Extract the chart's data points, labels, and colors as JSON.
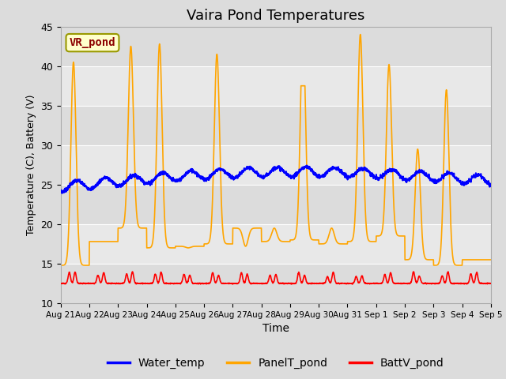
{
  "title": "Vaira Pond Temperatures",
  "xlabel": "Time",
  "ylabel": "Temperature (C), Battery (V)",
  "ylim": [
    10,
    45
  ],
  "yticks": [
    10,
    15,
    20,
    25,
    30,
    35,
    40,
    45
  ],
  "xtick_labels": [
    "Aug 21",
    "Aug 22",
    "Aug 23",
    "Aug 24",
    "Aug 25",
    "Aug 26",
    "Aug 27",
    "Aug 28",
    "Aug 29",
    "Aug 30",
    "Aug 31",
    "Sep 1",
    "Sep 2",
    "Sep 3",
    "Sep 4",
    "Sep 5"
  ],
  "legend_labels": [
    "Water_temp",
    "PanelT_pond",
    "BattV_pond"
  ],
  "legend_colors": [
    "blue",
    "orange",
    "red"
  ],
  "annotation_text": "VR_pond",
  "annotation_box_facecolor": "#FFFFCC",
  "annotation_box_edgecolor": "#999900",
  "annotation_text_color": "#8B0000",
  "water_temp_color": "blue",
  "panel_temp_color": "orange",
  "batt_color": "red",
  "n_days": 15,
  "figure_bg": "#DCDCDC",
  "axes_bg": "#E8E8E8",
  "band_colors": [
    "#DCDCDC",
    "#E8E8E8"
  ],
  "grid_color": "white",
  "band_yticks": [
    10,
    15,
    20,
    25,
    30,
    35,
    40,
    45
  ]
}
